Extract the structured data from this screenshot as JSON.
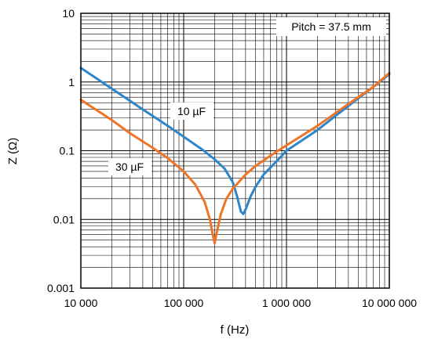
{
  "chart_data": {
    "type": "line",
    "xscale": "log",
    "yscale": "log",
    "xlim": [
      10000,
      10000000
    ],
    "ylim": [
      0.001,
      10
    ],
    "xlabel": "f (Hz)",
    "ylabel": "Z (Ω)",
    "grid": true,
    "x_ticks": [
      {
        "value": 10000,
        "label": "10 000"
      },
      {
        "value": 100000,
        "label": "100 000"
      },
      {
        "value": 1000000,
        "label": "1 000 000"
      },
      {
        "value": 10000000,
        "label": "10 000 000"
      }
    ],
    "y_ticks": [
      {
        "value": 0.001,
        "label": "0.001"
      },
      {
        "value": 0.01,
        "label": "0.01"
      },
      {
        "value": 0.1,
        "label": "0.1"
      },
      {
        "value": 1,
        "label": "1"
      },
      {
        "value": 10,
        "label": "10"
      }
    ],
    "annotations": {
      "pitch": "Pitch = 37.5 mm"
    },
    "series": [
      {
        "name": "10 µF",
        "color": "#2e86c8",
        "points": [
          [
            10000,
            1.6
          ],
          [
            20000,
            0.8
          ],
          [
            40000,
            0.4
          ],
          [
            70000,
            0.23
          ],
          [
            100000,
            0.16
          ],
          [
            150000,
            0.105
          ],
          [
            200000,
            0.075
          ],
          [
            250000,
            0.055
          ],
          [
            300000,
            0.035
          ],
          [
            330000,
            0.022
          ],
          [
            360000,
            0.013
          ],
          [
            380000,
            0.012
          ],
          [
            400000,
            0.014
          ],
          [
            450000,
            0.022
          ],
          [
            500000,
            0.03
          ],
          [
            600000,
            0.045
          ],
          [
            800000,
            0.07
          ],
          [
            1000000,
            0.1
          ],
          [
            2000000,
            0.2
          ],
          [
            4000000,
            0.45
          ],
          [
            7000000,
            0.85
          ],
          [
            10000000,
            1.3
          ]
        ]
      },
      {
        "name": "30 µF",
        "color": "#f07428",
        "points": [
          [
            10000,
            0.55
          ],
          [
            15000,
            0.37
          ],
          [
            20000,
            0.28
          ],
          [
            30000,
            0.18
          ],
          [
            50000,
            0.11
          ],
          [
            70000,
            0.078
          ],
          [
            100000,
            0.05
          ],
          [
            130000,
            0.032
          ],
          [
            160000,
            0.018
          ],
          [
            180000,
            0.01
          ],
          [
            190000,
            0.0065
          ],
          [
            200000,
            0.0045
          ],
          [
            210000,
            0.0065
          ],
          [
            230000,
            0.012
          ],
          [
            260000,
            0.02
          ],
          [
            300000,
            0.028
          ],
          [
            400000,
            0.045
          ],
          [
            500000,
            0.06
          ],
          [
            700000,
            0.085
          ],
          [
            1000000,
            0.12
          ],
          [
            2000000,
            0.23
          ],
          [
            4000000,
            0.48
          ],
          [
            7000000,
            0.85
          ],
          [
            10000000,
            1.35
          ]
        ]
      }
    ]
  }
}
